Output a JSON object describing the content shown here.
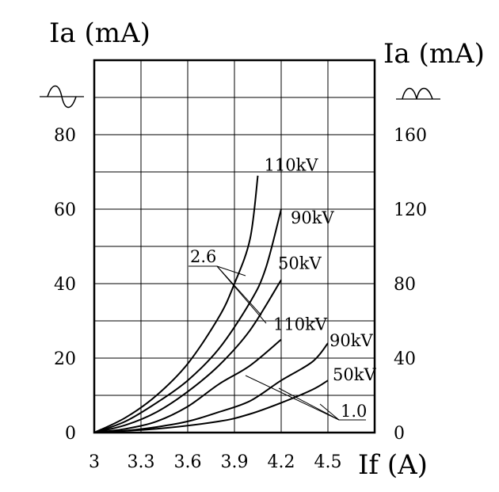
{
  "chart_data": {
    "type": "line",
    "left_axis_title": "Ia (mA)",
    "right_axis_title": "Ia (mA)",
    "x_axis_title": "If (A)",
    "left_wave_icon": "sine-wave-icon",
    "right_wave_icon": "rectified-half-wave-icon",
    "x_ticks": [
      "3",
      "3.3",
      "3.6",
      "3.9",
      "4.2",
      "4.5"
    ],
    "left_ticks": [
      "0",
      "20",
      "40",
      "60",
      "80"
    ],
    "right_ticks": [
      "0",
      "40",
      "80",
      "120",
      "160"
    ],
    "xlim": [
      3,
      4.8
    ],
    "left_ylim": [
      0,
      100
    ],
    "right_ylim": [
      0,
      200
    ],
    "grid": true,
    "group_labels": [
      "2.6",
      "1.0"
    ],
    "series": [
      {
        "name": "110kV",
        "axis": "left",
        "group": "2.6",
        "x": [
          3.0,
          3.2,
          3.4,
          3.6,
          3.8,
          3.9,
          4.0,
          4.05
        ],
        "y": [
          0,
          4,
          10,
          18.5,
          31,
          40,
          52,
          69
        ]
      },
      {
        "name": "90kV",
        "axis": "left",
        "group": "2.6",
        "x": [
          3.0,
          3.2,
          3.4,
          3.6,
          3.8,
          4.0,
          4.1,
          4.2
        ],
        "y": [
          0,
          3,
          8,
          14,
          22.5,
          35,
          44,
          60
        ]
      },
      {
        "name": "50kV",
        "axis": "left",
        "group": "2.6",
        "x": [
          3.0,
          3.2,
          3.4,
          3.6,
          3.8,
          4.0,
          4.2
        ],
        "y": [
          0,
          2,
          5.5,
          11,
          18,
          27.5,
          41
        ]
      },
      {
        "name": "110kV",
        "axis": "right",
        "group": "1.0",
        "x": [
          3.0,
          3.2,
          3.4,
          3.6,
          3.8,
          4.0,
          4.2
        ],
        "y": [
          0,
          2,
          6,
          14,
          26,
          36,
          50
        ]
      },
      {
        "name": "90kV",
        "axis": "right",
        "group": "1.0",
        "x": [
          3.0,
          3.2,
          3.4,
          3.6,
          3.8,
          4.0,
          4.2,
          4.4,
          4.5
        ],
        "y": [
          0,
          1,
          3,
          6,
          11,
          17,
          28,
          38,
          48
        ]
      },
      {
        "name": "50kV",
        "axis": "right",
        "group": "1.0",
        "x": [
          3.0,
          3.4,
          3.8,
          4.0,
          4.2,
          4.4,
          4.5
        ],
        "y": [
          0,
          2,
          6,
          10,
          16,
          23,
          28
        ]
      }
    ]
  }
}
